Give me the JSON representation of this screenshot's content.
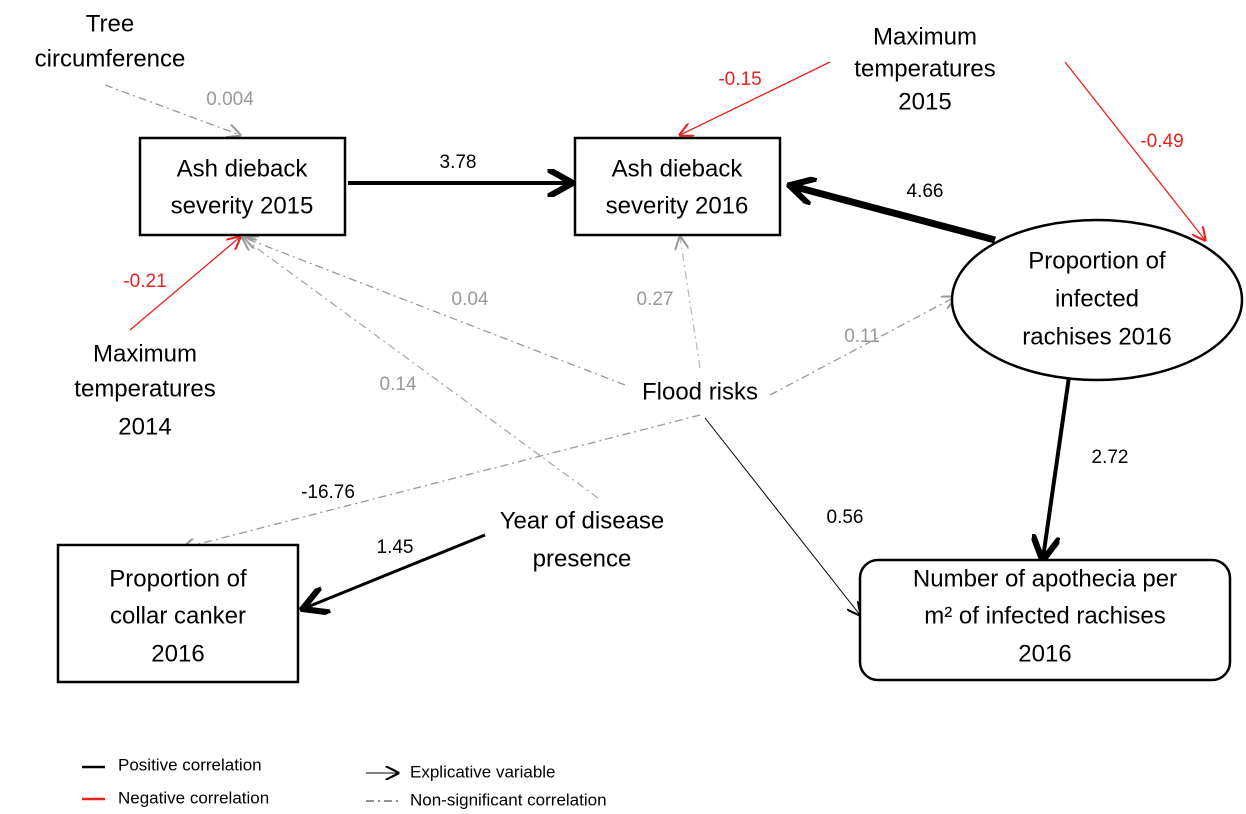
{
  "nodes": [
    {
      "lines": [
        "Tree",
        "circumference"
      ]
    },
    {
      "lines": [
        "Ash dieback",
        "severity 2015"
      ]
    },
    {
      "lines": [
        "Ash dieback",
        "severity 2016"
      ]
    },
    {
      "lines": [
        "Maximum",
        "temperatures",
        "2015"
      ]
    },
    {
      "lines": [
        "Proportion of",
        "infected",
        "rachises 2016"
      ]
    },
    {
      "lines": [
        "Maximum",
        "temperatures",
        "2014"
      ]
    },
    {
      "lines": [
        "Flood risks"
      ]
    },
    {
      "lines": [
        "Year of disease",
        "presence"
      ]
    },
    {
      "lines": [
        "Proportion of",
        "collar canker",
        "2016"
      ]
    },
    {
      "lines": [
        "Number of apothecia per",
        "m² of infected rachises",
        "2016"
      ]
    }
  ],
  "edges": [
    {
      "label": "0.004"
    },
    {
      "label": "3.78"
    },
    {
      "label": "-0.15"
    },
    {
      "label": "-0.49"
    },
    {
      "label": "4.66"
    },
    {
      "label": "-0.21"
    },
    {
      "label": "0.04"
    },
    {
      "label": "0.14"
    },
    {
      "label": "0.27"
    },
    {
      "label": "0.11"
    },
    {
      "label": "-16.76"
    },
    {
      "label": "1.45"
    },
    {
      "label": "0.56"
    },
    {
      "label": "2.72"
    }
  ],
  "legend": [
    "Positive correlation",
    "Negative correlation",
    "Explicative variable",
    "Non-significant correlation"
  ]
}
